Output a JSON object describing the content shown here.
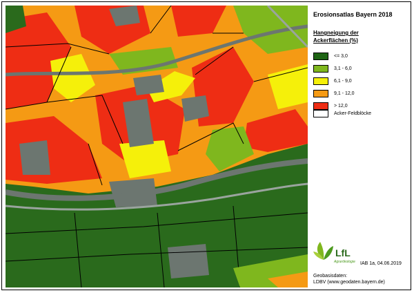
{
  "map": {
    "title": "Erosionsatlas Bayern 2018",
    "legend": {
      "title_lines": [
        "Hangneigung der",
        "Ackerflächen (%)"
      ],
      "items": [
        {
          "label": "<= 3,0",
          "color": "#1e6414"
        },
        {
          "label": "3,1 - 6,0",
          "color": "#7fb71e"
        },
        {
          "label": "6,1 - 9,0",
          "color": "#f5f00a"
        },
        {
          "label": "9,1 - 12,0",
          "color": "#f59a14"
        },
        {
          "label": "> 12,0",
          "color": "#ee2d14"
        }
      ],
      "outline_label": "Acker-Feldblöcke"
    },
    "logo": {
      "name": "LfL",
      "subtitle": "Agrarökologie"
    },
    "reference": "IAB 1a,  04.06.2019",
    "source_title": "Geobasisdaten:",
    "source": "LDBV (www.geodaten.bayern.de)"
  }
}
